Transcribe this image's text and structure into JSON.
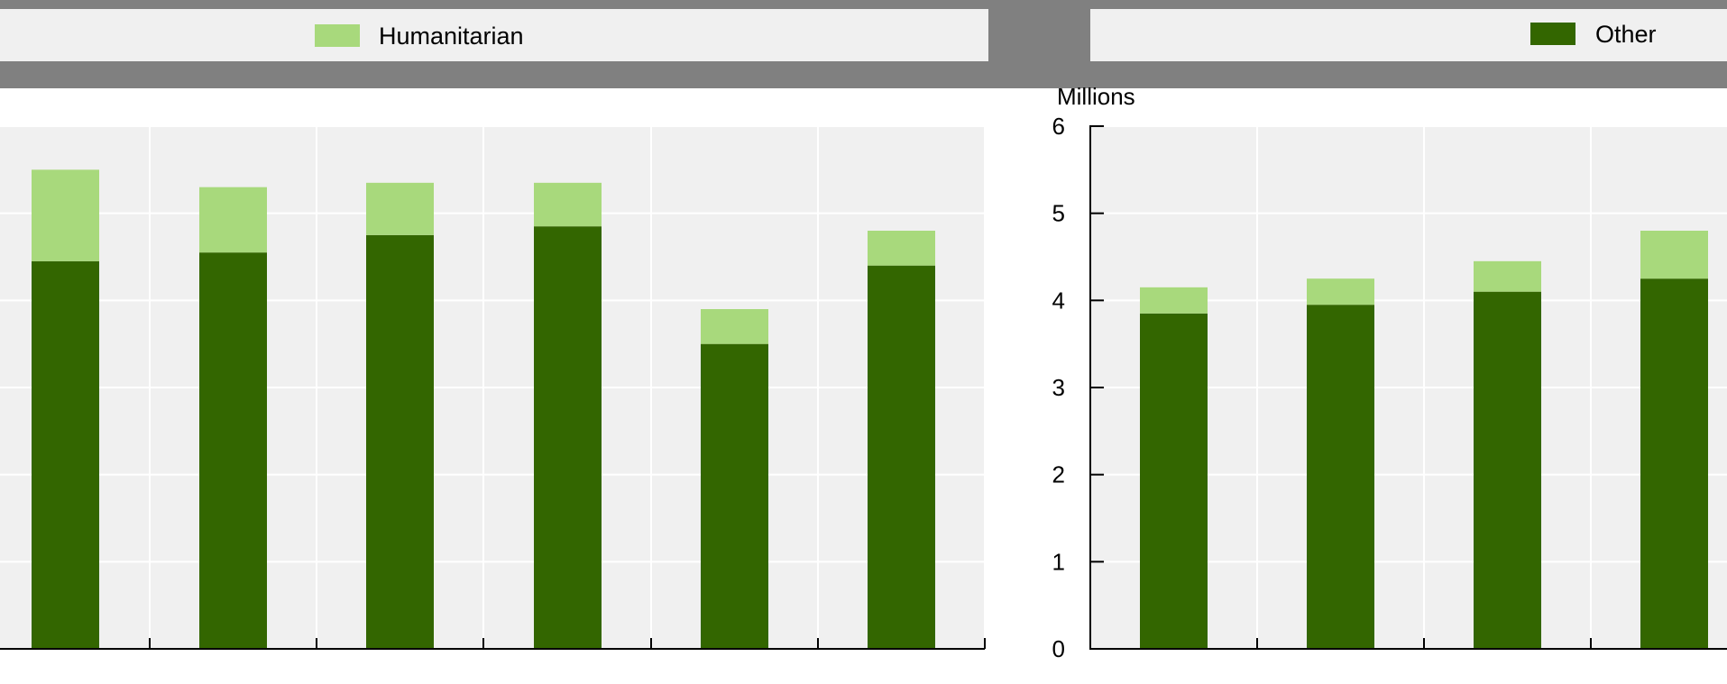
{
  "legend": {
    "humanitarian_label": "Humanitarian",
    "other_label": "Other",
    "humanitarian_color": "#a8d97c",
    "other_color": "#336600"
  },
  "colors": {
    "legend_band": "#808080",
    "legend_box": "#f0f0f0",
    "plot_bg": "#f0f0f0"
  },
  "chart_data": [
    {
      "type": "bar",
      "stacked": true,
      "ylim": [
        0,
        6
      ],
      "grid": true,
      "ylabel": "",
      "categories": [
        "",
        "",
        "",
        "",
        "",
        ""
      ],
      "series": [
        {
          "name": "Other",
          "values": [
            4.45,
            4.55,
            4.75,
            4.85,
            3.5,
            4.4
          ]
        },
        {
          "name": "Humanitarian",
          "values": [
            1.05,
            0.75,
            0.6,
            0.5,
            0.4,
            0.4
          ]
        }
      ]
    },
    {
      "type": "bar",
      "stacked": true,
      "ylim": [
        0,
        6
      ],
      "grid": true,
      "ylabel": "Millions",
      "yticks": [
        "0",
        "1",
        "2",
        "3",
        "4",
        "5",
        "6"
      ],
      "categories": [
        "",
        "",
        "",
        ""
      ],
      "series": [
        {
          "name": "Other",
          "values": [
            3.85,
            3.95,
            4.1,
            4.25
          ]
        },
        {
          "name": "Humanitarian",
          "values": [
            0.3,
            0.3,
            0.35,
            0.55
          ]
        }
      ]
    }
  ]
}
